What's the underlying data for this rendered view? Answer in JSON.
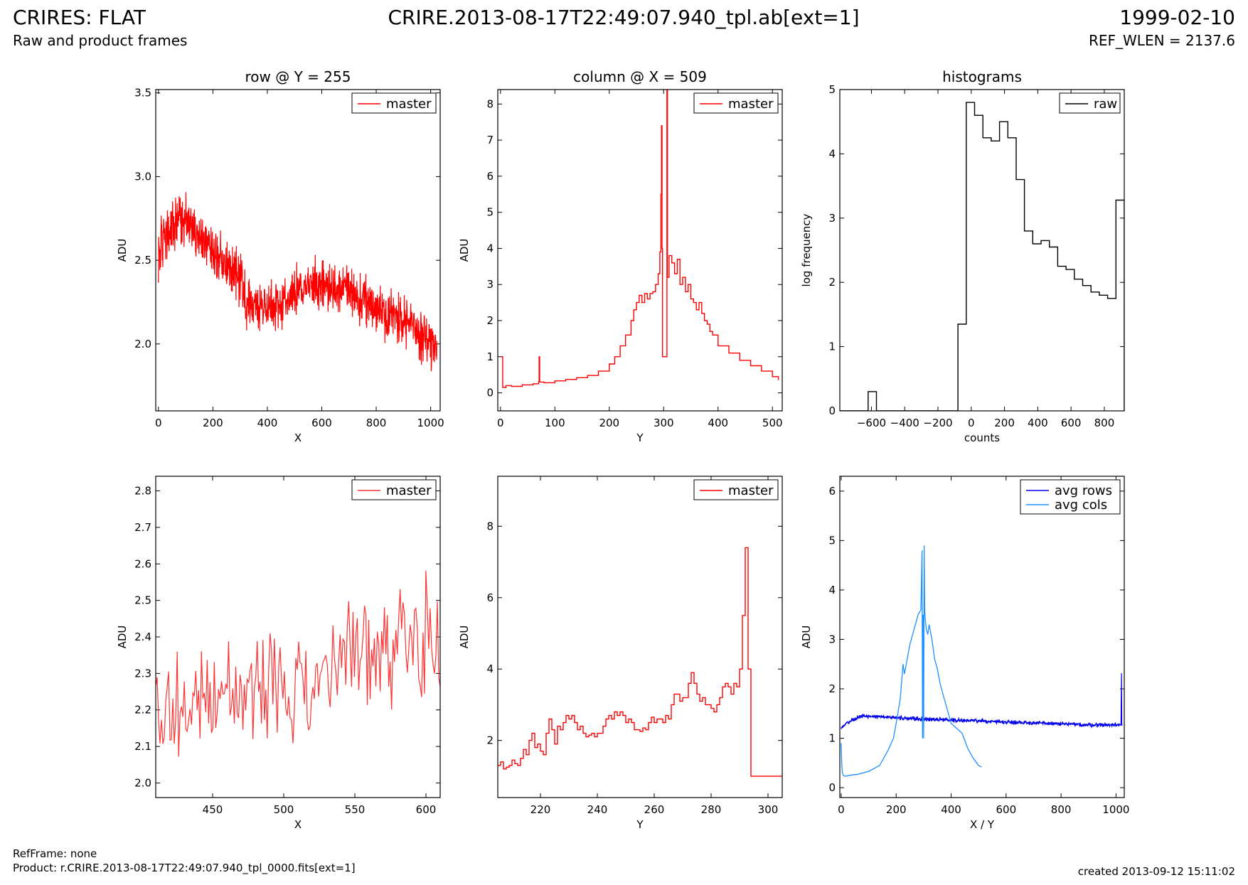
{
  "header": {
    "title_left": "CRIRES: FLAT",
    "subtitle_left": "Raw and product frames",
    "title_center": "CRIRE.2013-08-17T22:49:07.940_tpl.ab[ext=1]",
    "title_right": "1999-02-10",
    "subtitle_right": "REF_WLEN = 2137.6"
  },
  "footer": {
    "ref_frame": "RefFrame: none",
    "product": "Product: r.CRIRE.2013-08-17T22:49:07.940_tpl_0000.fits[ext=1]",
    "created": "created 2013-09-12 15:11:02"
  },
  "colors": {
    "master": "#ff0000",
    "master_zoom": "#ff3333",
    "raw": "#000000",
    "avg_rows": "#0000ee",
    "avg_cols": "#1e90ff"
  },
  "chart_data": [
    {
      "id": "row_full",
      "type": "line",
      "title": "row @ Y = 255",
      "xlabel": "X",
      "ylabel": "ADU",
      "xlim": [
        -10,
        1035
      ],
      "ylim": [
        1.6,
        3.52
      ],
      "xticks": [
        0,
        200,
        400,
        600,
        800,
        1000
      ],
      "yticks": [
        2.0,
        2.5,
        3.0,
        3.5
      ],
      "ytick_labels": [
        "2.0",
        "2.5",
        "3.0",
        "3.5"
      ],
      "legend": "top-right",
      "series": [
        {
          "name": "master",
          "color": "#ff0000",
          "style": "noisy",
          "noise": 0.11,
          "n": 1024,
          "x": [
            0,
            30,
            60,
            90,
            130,
            200,
            250,
            300,
            320,
            400,
            450,
            500,
            550,
            600,
            650,
            700,
            750,
            800,
            850,
            900,
            950,
            1000,
            1023
          ],
          "y": [
            2.55,
            2.65,
            2.7,
            2.75,
            2.7,
            2.55,
            2.48,
            2.4,
            2.25,
            2.22,
            2.25,
            2.3,
            2.35,
            2.35,
            2.32,
            2.33,
            2.25,
            2.22,
            2.18,
            2.15,
            2.08,
            2.0,
            2.02
          ]
        }
      ]
    },
    {
      "id": "col_full",
      "type": "line",
      "title": "column @ X = 509",
      "xlabel": "Y",
      "ylabel": "ADU",
      "xlim": [
        -5,
        518
      ],
      "ylim": [
        -0.5,
        8.4
      ],
      "xticks": [
        0,
        100,
        200,
        300,
        400,
        500
      ],
      "yticks": [
        0,
        1,
        2,
        3,
        4,
        5,
        6,
        7,
        8
      ],
      "ytick_labels": [
        "0",
        "1",
        "2",
        "3",
        "4",
        "5",
        "6",
        "7",
        "8"
      ],
      "legend": "top-right",
      "series": [
        {
          "name": "master",
          "color": "#ff0000",
          "style": "step",
          "x": [
            0,
            3,
            4,
            10,
            20,
            40,
            60,
            70,
            71,
            72,
            80,
            100,
            120,
            140,
            160,
            180,
            200,
            210,
            220,
            230,
            240,
            245,
            250,
            255,
            260,
            265,
            270,
            275,
            280,
            285,
            290,
            293,
            295,
            296,
            297,
            298,
            299,
            300,
            302,
            306,
            307,
            310,
            315,
            320,
            325,
            330,
            335,
            340,
            345,
            350,
            355,
            360,
            365,
            370,
            375,
            380,
            385,
            390,
            400,
            420,
            440,
            460,
            480,
            500,
            511
          ],
          "y": [
            1.0,
            1.0,
            0.15,
            0.2,
            0.18,
            0.22,
            0.25,
            0.3,
            1.0,
            0.3,
            0.28,
            0.33,
            0.37,
            0.42,
            0.48,
            0.6,
            0.8,
            1.0,
            1.3,
            1.6,
            2.0,
            2.3,
            2.5,
            2.7,
            2.5,
            2.75,
            2.6,
            2.75,
            2.8,
            3.0,
            3.3,
            3.9,
            5.5,
            7.4,
            4.0,
            1.0,
            1.0,
            1.0,
            1.0,
            8.4,
            3.2,
            3.8,
            3.6,
            3.3,
            3.7,
            3.0,
            3.2,
            2.8,
            3.0,
            2.6,
            2.5,
            2.3,
            2.5,
            2.2,
            2.0,
            1.9,
            1.7,
            1.6,
            1.3,
            1.1,
            0.9,
            0.75,
            0.6,
            0.45,
            0.35
          ]
        }
      ]
    },
    {
      "id": "hist",
      "type": "line",
      "title": "histograms",
      "xlabel": "counts",
      "ylabel": "log frequency",
      "xlim": [
        -790,
        920
      ],
      "ylim": [
        0,
        5
      ],
      "xticks": [
        -600,
        -400,
        -200,
        0,
        200,
        400,
        600,
        800
      ],
      "yticks": [
        0,
        1,
        2,
        3,
        4,
        5
      ],
      "ytick_labels": [
        "0",
        "1",
        "2",
        "3",
        "4",
        "5"
      ],
      "legend": "top-right",
      "series": [
        {
          "name": "raw",
          "color": "#000000",
          "style": "hist",
          "edges": [
            -790,
            -620,
            -570,
            -80,
            -30,
            20,
            70,
            120,
            170,
            220,
            270,
            320,
            370,
            420,
            470,
            520,
            570,
            620,
            670,
            720,
            770,
            820,
            870,
            920
          ],
          "y": [
            0,
            0.3,
            0,
            1.35,
            4.8,
            4.6,
            4.25,
            4.2,
            4.5,
            4.25,
            3.6,
            2.8,
            2.6,
            2.65,
            2.55,
            2.25,
            2.2,
            2.05,
            1.95,
            1.85,
            1.8,
            1.75,
            3.28
          ]
        }
      ]
    },
    {
      "id": "row_zoom",
      "type": "line",
      "title": "",
      "xlabel": "X",
      "ylabel": "ADU",
      "xlim": [
        410,
        610
      ],
      "ylim": [
        1.96,
        2.84
      ],
      "xticks": [
        450,
        500,
        550,
        600
      ],
      "yticks": [
        2.0,
        2.1,
        2.2,
        2.3,
        2.4,
        2.5,
        2.6,
        2.7,
        2.8
      ],
      "ytick_labels": [
        "2.0",
        "2.1",
        "2.2",
        "2.3",
        "2.4",
        "2.5",
        "2.6",
        "2.7",
        "2.8"
      ],
      "legend": "top-right",
      "series": [
        {
          "name": "master",
          "color": "#ff3333",
          "style": "noisy",
          "noise": 0.12,
          "n": 200,
          "x": [
            410,
            440,
            470,
            500,
            520,
            540,
            560,
            580,
            600,
            610
          ],
          "y": [
            2.2,
            2.24,
            2.22,
            2.25,
            2.28,
            2.35,
            2.33,
            2.42,
            2.4,
            2.35
          ]
        }
      ]
    },
    {
      "id": "col_zoom",
      "type": "line",
      "title": "",
      "xlabel": "Y",
      "ylabel": "ADU",
      "xlim": [
        205,
        305
      ],
      "ylim": [
        0.4,
        9.4
      ],
      "xticks": [
        220,
        240,
        260,
        280,
        300
      ],
      "yticks": [
        2,
        4,
        6,
        8
      ],
      "ytick_labels": [
        "2",
        "4",
        "6",
        "8"
      ],
      "legend": "top-right",
      "series": [
        {
          "name": "master",
          "color": "#ff0000",
          "style": "step",
          "x": [
            205,
            206,
            207,
            208,
            209,
            210,
            211,
            212,
            213,
            214,
            215,
            216,
            217,
            218,
            219,
            220,
            221,
            222,
            223,
            224,
            225,
            226,
            227,
            228,
            229,
            230,
            231,
            232,
            233,
            234,
            235,
            236,
            237,
            238,
            239,
            240,
            241,
            242,
            243,
            244,
            245,
            246,
            247,
            248,
            249,
            250,
            251,
            252,
            253,
            254,
            255,
            256,
            257,
            258,
            259,
            260,
            261,
            262,
            263,
            264,
            265,
            266,
            267,
            268,
            269,
            270,
            271,
            272,
            273,
            274,
            275,
            276,
            277,
            278,
            279,
            280,
            281,
            282,
            283,
            284,
            285,
            286,
            287,
            288,
            289,
            290,
            291,
            292,
            293,
            294,
            295,
            296,
            297,
            298,
            299,
            300,
            301,
            302,
            303,
            304,
            305
          ],
          "y": [
            1.3,
            1.4,
            1.2,
            1.25,
            1.3,
            1.45,
            1.35,
            1.3,
            1.5,
            1.75,
            1.6,
            2.0,
            2.2,
            1.8,
            1.9,
            1.7,
            1.6,
            2.2,
            2.6,
            2.3,
            1.9,
            2.4,
            2.3,
            2.5,
            2.7,
            2.6,
            2.7,
            2.5,
            2.3,
            2.4,
            2.2,
            2.1,
            2.15,
            2.2,
            2.1,
            2.2,
            2.2,
            2.4,
            2.6,
            2.7,
            2.6,
            2.8,
            2.7,
            2.8,
            2.7,
            2.5,
            2.6,
            2.5,
            2.3,
            2.3,
            2.25,
            2.35,
            2.3,
            2.5,
            2.65,
            2.5,
            2.6,
            2.6,
            2.5,
            2.7,
            2.6,
            3.0,
            3.3,
            3.3,
            3.1,
            3.2,
            3.2,
            3.6,
            3.9,
            3.6,
            3.3,
            3.1,
            3.2,
            3.0,
            3.0,
            2.9,
            2.8,
            3.0,
            3.2,
            3.5,
            3.6,
            3.5,
            3.3,
            3.6,
            3.5,
            4.0,
            5.5,
            7.4,
            4.0,
            1.0,
            1.0,
            1.0,
            1.0,
            1.0,
            1.0,
            1.0,
            1.0,
            1.0,
            1.0,
            1.0,
            1.0
          ]
        }
      ]
    },
    {
      "id": "avg",
      "type": "line",
      "title": "",
      "xlabel": "X / Y",
      "ylabel": "ADU",
      "xlim": [
        -5,
        1030
      ],
      "ylim": [
        -0.2,
        6.3
      ],
      "xticks": [
        0,
        200,
        400,
        600,
        800,
        1000
      ],
      "yticks": [
        0,
        1,
        2,
        3,
        4,
        5,
        6
      ],
      "ytick_labels": [
        "0",
        "1",
        "2",
        "3",
        "4",
        "5",
        "6"
      ],
      "legend": "top-right",
      "series": [
        {
          "name": "avg rows",
          "color": "#0000ee",
          "style": "noisy",
          "noise": 0.03,
          "n": 1024,
          "x": [
            0,
            20,
            40,
            60,
            80,
            150,
            250,
            400,
            500,
            600,
            700,
            800,
            900,
            1000,
            1018,
            1020,
            1021,
            1023
          ],
          "y": [
            1.2,
            1.3,
            1.37,
            1.42,
            1.45,
            1.43,
            1.4,
            1.37,
            1.35,
            1.33,
            1.31,
            1.29,
            1.27,
            1.27,
            1.28,
            2.3,
            1.3,
            1.3
          ]
        },
        {
          "name": "avg cols",
          "color": "#1e90ff",
          "style": "line",
          "x": [
            0,
            2,
            4,
            8,
            15,
            30,
            60,
            100,
            140,
            170,
            190,
            200,
            215,
            225,
            230,
            240,
            250,
            260,
            270,
            280,
            290,
            294,
            296,
            298,
            300,
            302,
            304,
            306,
            310,
            315,
            320,
            330,
            340,
            350,
            360,
            370,
            380,
            390,
            400,
            420,
            440,
            460,
            480,
            500,
            511
          ],
          "y": [
            0.9,
            0.5,
            0.3,
            0.25,
            0.23,
            0.25,
            0.27,
            0.33,
            0.45,
            0.75,
            1.0,
            1.3,
            1.8,
            2.5,
            2.3,
            2.6,
            2.9,
            3.1,
            3.3,
            3.5,
            3.6,
            4.8,
            1.0,
            3.5,
            1.0,
            4.9,
            3.6,
            3.4,
            3.2,
            3.1,
            3.3,
            3.0,
            2.6,
            2.4,
            2.1,
            1.9,
            1.7,
            1.5,
            1.3,
            1.2,
            1.1,
            0.8,
            0.6,
            0.45,
            0.42
          ]
        }
      ]
    }
  ]
}
